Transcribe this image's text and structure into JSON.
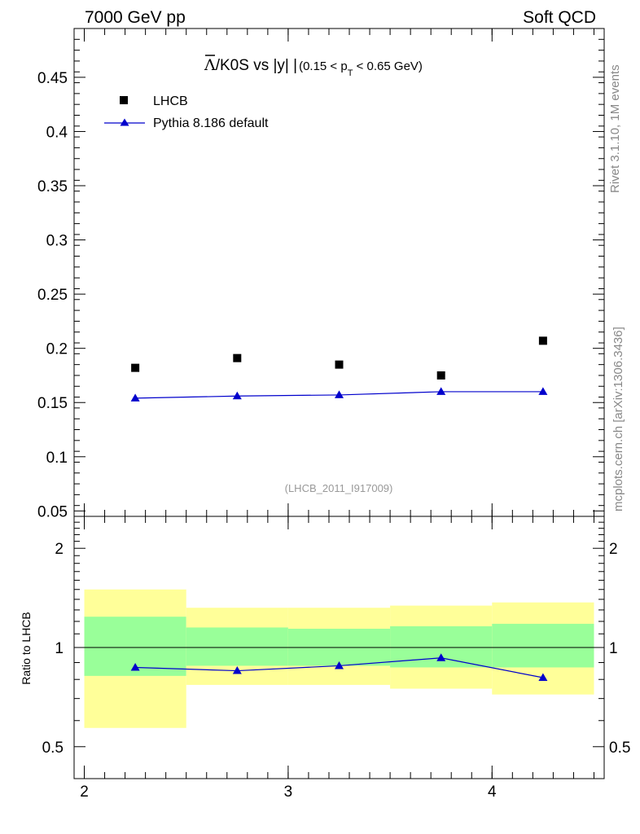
{
  "header": {
    "left": "7000 GeV pp",
    "right": "Soft QCD"
  },
  "side": {
    "rivet": "Rivet 3.1.10,  1M events",
    "mcplots": "mcplots.cern.ch [arXiv:1306.3436]"
  },
  "colors": {
    "mc": "#0000cc",
    "data": "#000000",
    "band_outer": "#ffff99",
    "band_inner": "#99ff99"
  },
  "chart_data": [
    {
      "type": "scatter",
      "panel": "main",
      "title": {
        "particle": "Λ",
        "rest": "/K0S vs |y|",
        "cut_prefix": "(0.15 < p",
        "cut_sub": "T",
        "cut_suffix": " < 0.65 GeV)"
      },
      "analysis_id": "(LHCB_2011_I917009)",
      "xlim": [
        1.95,
        4.55
      ],
      "ylim": [
        0.045,
        0.495
      ],
      "yticks": [
        "0.05",
        "0.1",
        "0.15",
        "0.2",
        "0.25",
        "0.3",
        "0.35",
        "0.4",
        "0.45"
      ],
      "ytick_values": [
        0.05,
        0.1,
        0.15,
        0.2,
        0.25,
        0.3,
        0.35,
        0.4,
        0.45
      ],
      "legend": {
        "placement": "top-left",
        "data_label": "LHCB",
        "mc_label": "Pythia 8.186 default"
      },
      "series": [
        {
          "name": "LHCB",
          "x": [
            2.25,
            2.75,
            3.25,
            3.75,
            4.25
          ],
          "values": [
            0.182,
            0.191,
            0.185,
            0.175,
            0.207
          ]
        },
        {
          "name": "Pythia 8.186 default",
          "x": [
            2.25,
            2.75,
            3.25,
            3.75,
            4.25
          ],
          "values": [
            0.154,
            0.156,
            0.157,
            0.16,
            0.16
          ]
        }
      ]
    },
    {
      "type": "line",
      "panel": "ratio",
      "ylabel": "Ratio to LHCB",
      "xlim": [
        1.95,
        4.55
      ],
      "ylim": [
        0.4,
        2.5
      ],
      "yscale": "log",
      "yticks": [
        "0.5",
        "1",
        "2"
      ],
      "ytick_values": [
        0.5,
        1,
        2
      ],
      "xticks": [
        "2",
        "3",
        "4"
      ],
      "xtick_values": [
        2,
        3,
        4
      ],
      "bands": [
        {
          "x0": 2.0,
          "x1": 2.5,
          "inner_lo": 0.82,
          "inner_hi": 1.24,
          "outer_lo": 0.57,
          "outer_hi": 1.5
        },
        {
          "x0": 2.5,
          "x1": 3.0,
          "inner_lo": 0.88,
          "inner_hi": 1.15,
          "outer_lo": 0.77,
          "outer_hi": 1.32
        },
        {
          "x0": 3.0,
          "x1": 3.5,
          "inner_lo": 0.88,
          "inner_hi": 1.14,
          "outer_lo": 0.77,
          "outer_hi": 1.32
        },
        {
          "x0": 3.5,
          "x1": 4.0,
          "inner_lo": 0.87,
          "inner_hi": 1.16,
          "outer_lo": 0.75,
          "outer_hi": 1.34
        },
        {
          "x0": 4.0,
          "x1": 4.5,
          "inner_lo": 0.87,
          "inner_hi": 1.18,
          "outer_lo": 0.72,
          "outer_hi": 1.37
        }
      ],
      "series": [
        {
          "name": "Pythia 8.186 default / LHCB",
          "x": [
            2.25,
            2.75,
            3.25,
            3.75,
            4.25
          ],
          "values": [
            0.87,
            0.85,
            0.88,
            0.93,
            0.81
          ]
        }
      ]
    }
  ]
}
